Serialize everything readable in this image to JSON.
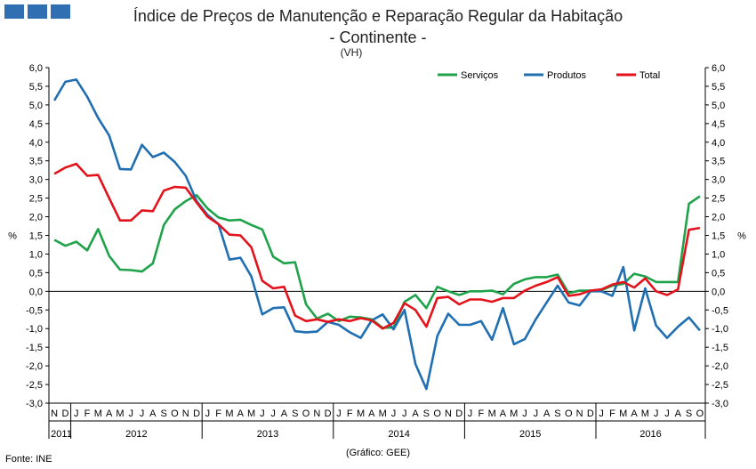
{
  "title_line1": "Índice de Preços de Manutenção e Reparação Regular da Habitação",
  "title_line2": "- Continente -",
  "subtitle": "(VH)",
  "footer_source": "Fonte: INE",
  "footer_credit": "(Gráfico: GEE)",
  "chart_data": {
    "type": "line",
    "title": "Índice de Preços de Manutenção e Reparação Regular da Habitação - Continente - (VH)",
    "ylabel_left": "%",
    "ylabel_right": "%",
    "ylim": [
      -3.0,
      6.0
    ],
    "y_ticks": [
      "6,0",
      "5,5",
      "5,0",
      "4,5",
      "4,0",
      "3,5",
      "3,0",
      "2,5",
      "2,0",
      "1,5",
      "1,0",
      "0,5",
      "0,0",
      "-0,5",
      "-1,0",
      "-1,5",
      "-2,0",
      "-2,5",
      "-3,0"
    ],
    "y_tick_values": [
      6.0,
      5.5,
      5.0,
      4.5,
      4.0,
      3.5,
      3.0,
      2.5,
      2.0,
      1.5,
      1.0,
      0.5,
      0.0,
      -0.5,
      -1.0,
      -1.5,
      -2.0,
      -2.5,
      -3.0
    ],
    "months": [
      "N",
      "D",
      "J",
      "F",
      "M",
      "A",
      "M",
      "J",
      "J",
      "A",
      "S",
      "O",
      "N",
      "D",
      "J",
      "F",
      "M",
      "A",
      "M",
      "J",
      "J",
      "A",
      "S",
      "O",
      "N",
      "D",
      "J",
      "F",
      "M",
      "A",
      "M",
      "J",
      "J",
      "A",
      "S",
      "O",
      "N",
      "D",
      "J",
      "F",
      "M",
      "A",
      "M",
      "J",
      "J",
      "A",
      "S",
      "O",
      "N",
      "D",
      "J",
      "F",
      "M",
      "A",
      "M",
      "J",
      "J",
      "A",
      "S",
      "O"
    ],
    "years": [
      {
        "label": "2011",
        "start": 0,
        "end": 1
      },
      {
        "label": "2012",
        "start": 2,
        "end": 13
      },
      {
        "label": "2013",
        "start": 14,
        "end": 25
      },
      {
        "label": "2014",
        "start": 26,
        "end": 37
      },
      {
        "label": "2015",
        "start": 38,
        "end": 49
      },
      {
        "label": "2016",
        "start": 50,
        "end": 59
      }
    ],
    "series": [
      {
        "name": "Serviços",
        "color": "#1fa34a",
        "values": [
          1.38,
          1.22,
          1.33,
          1.1,
          1.67,
          0.95,
          0.58,
          0.57,
          0.53,
          0.75,
          1.78,
          2.2,
          2.42,
          2.58,
          2.22,
          1.98,
          1.9,
          1.92,
          1.78,
          1.66,
          0.93,
          0.75,
          0.78,
          -0.35,
          -0.73,
          -0.6,
          -0.8,
          -0.68,
          -0.7,
          -0.75,
          -0.98,
          -0.97,
          -0.28,
          -0.1,
          -0.45,
          0.12,
          0.0,
          -0.1,
          0.0,
          0.0,
          0.02,
          -0.08,
          0.2,
          0.32,
          0.38,
          0.38,
          0.45,
          -0.05,
          0.02,
          0.02,
          0.03,
          0.15,
          0.2,
          0.47,
          0.4,
          0.25,
          0.25,
          0.25,
          2.35,
          2.55
        ]
      },
      {
        "name": "Produtos",
        "color": "#1f6fb2",
        "values": [
          5.12,
          5.62,
          5.68,
          5.22,
          4.65,
          4.18,
          3.28,
          3.27,
          3.93,
          3.6,
          3.72,
          3.47,
          3.1,
          2.42,
          2.05,
          1.8,
          0.85,
          0.9,
          0.4,
          -0.62,
          -0.45,
          -0.43,
          -1.07,
          -1.1,
          -1.08,
          -0.82,
          -0.9,
          -1.1,
          -1.25,
          -0.78,
          -0.62,
          -1.02,
          -0.5,
          -1.95,
          -2.62,
          -1.2,
          -0.6,
          -0.9,
          -0.9,
          -0.8,
          -1.3,
          -0.45,
          -1.42,
          -1.28,
          -0.75,
          -0.3,
          0.15,
          -0.3,
          -0.38,
          0.0,
          0.0,
          -0.12,
          0.65,
          -1.05,
          0.08,
          -0.92,
          -1.25,
          -0.95,
          -0.7,
          -1.05
        ]
      },
      {
        "name": "Total",
        "color": "#e3121b",
        "values": [
          3.15,
          3.32,
          3.42,
          3.1,
          3.12,
          2.5,
          1.9,
          1.9,
          2.17,
          2.15,
          2.7,
          2.8,
          2.78,
          2.38,
          2.0,
          1.8,
          1.52,
          1.5,
          1.18,
          0.28,
          0.08,
          0.12,
          -0.65,
          -0.8,
          -0.75,
          -0.82,
          -0.75,
          -0.8,
          -0.72,
          -0.78,
          -1.0,
          -0.85,
          -0.32,
          -0.5,
          -0.95,
          -0.18,
          -0.15,
          -0.35,
          -0.22,
          -0.22,
          -0.28,
          -0.18,
          -0.18,
          0.02,
          0.15,
          0.25,
          0.38,
          -0.12,
          -0.08,
          0.02,
          0.05,
          0.18,
          0.25,
          0.1,
          0.35,
          0.0,
          -0.1,
          0.05,
          1.65,
          1.7
        ]
      }
    ]
  }
}
